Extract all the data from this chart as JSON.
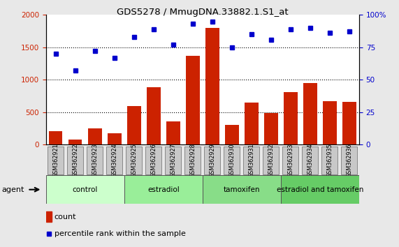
{
  "title": "GDS5278 / MmugDNA.33882.1.S1_at",
  "samples": [
    "GSM362921",
    "GSM362922",
    "GSM362923",
    "GSM362924",
    "GSM362925",
    "GSM362926",
    "GSM362927",
    "GSM362928",
    "GSM362929",
    "GSM362930",
    "GSM362931",
    "GSM362932",
    "GSM362933",
    "GSM362934",
    "GSM362935",
    "GSM362936"
  ],
  "counts": [
    210,
    80,
    250,
    175,
    590,
    880,
    360,
    1370,
    1800,
    300,
    650,
    480,
    810,
    950,
    670,
    660
  ],
  "percentiles": [
    70,
    57,
    72,
    67,
    83,
    89,
    77,
    93,
    95,
    75,
    85,
    81,
    89,
    90,
    86,
    87
  ],
  "bar_color": "#cc2200",
  "dot_color": "#0000cc",
  "left_yaxis_color": "#cc2200",
  "right_yaxis_color": "#0000cc",
  "left_ylim": [
    0,
    2000
  ],
  "right_ylim": [
    0,
    100
  ],
  "left_yticks": [
    0,
    500,
    1000,
    1500,
    2000
  ],
  "right_yticks": [
    0,
    25,
    50,
    75,
    100
  ],
  "right_yticklabels": [
    "0",
    "25",
    "50",
    "75",
    "100%"
  ],
  "groups": [
    {
      "label": "control",
      "start": 0,
      "end": 4,
      "color": "#ccffcc"
    },
    {
      "label": "estradiol",
      "start": 4,
      "end": 8,
      "color": "#99ee99"
    },
    {
      "label": "tamoxifen",
      "start": 8,
      "end": 12,
      "color": "#88dd88"
    },
    {
      "label": "estradiol and tamoxifen",
      "start": 12,
      "end": 16,
      "color": "#66cc66"
    }
  ],
  "agent_label": "agent",
  "legend_count_label": "count",
  "legend_pct_label": "percentile rank within the sample",
  "bg_color": "#e8e8e8",
  "plot_bg_color": "#ffffff",
  "sample_box_color": "#c8c8c8",
  "sample_box_edge": "#888888"
}
